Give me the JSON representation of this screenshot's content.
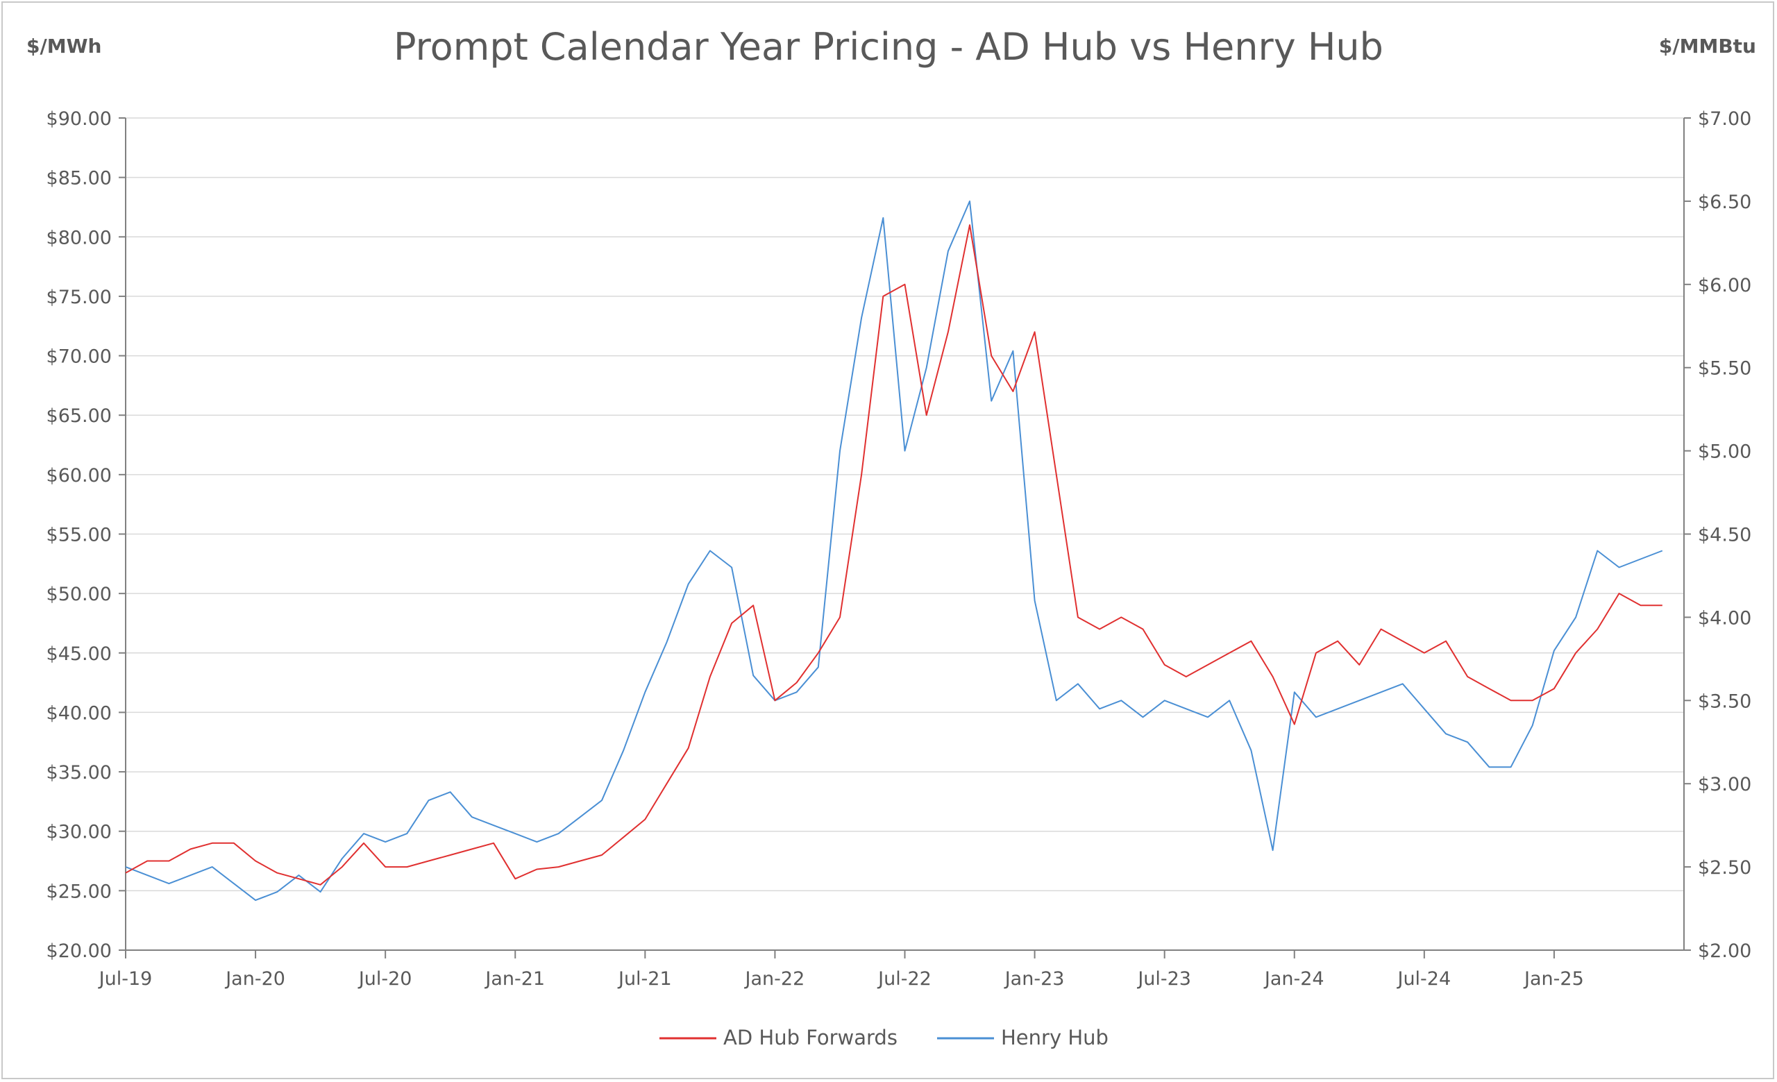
{
  "chart_data": {
    "type": "line",
    "title": "Prompt Calendar Year Pricing - AD Hub vs Henry Hub",
    "y_left_label": "$/MWh",
    "y_right_label": "$/MMBtu",
    "y_left_lim": [
      20,
      90
    ],
    "y_right_lim": [
      2,
      7
    ],
    "y_left_ticks": [
      "$20.00",
      "$25.00",
      "$30.00",
      "$35.00",
      "$40.00",
      "$45.00",
      "$50.00",
      "$55.00",
      "$60.00",
      "$65.00",
      "$70.00",
      "$75.00",
      "$80.00",
      "$85.00",
      "$90.00"
    ],
    "y_right_ticks": [
      "$2.00",
      "$2.50",
      "$3.00",
      "$3.50",
      "$4.00",
      "$4.50",
      "$5.00",
      "$5.50",
      "$6.00",
      "$6.50",
      "$7.00"
    ],
    "x_ticks": [
      "Jul-19",
      "Jan-20",
      "Jul-20",
      "Jan-21",
      "Jul-21",
      "Jan-22",
      "Jul-22",
      "Jan-23",
      "Jul-23",
      "Jan-24",
      "Jul-24",
      "Jan-25"
    ],
    "x_range": [
      "2019-07",
      "2025-07"
    ],
    "grid": "horizontal",
    "legend_position": "bottom",
    "series": [
      {
        "name": "AD Hub Forwards",
        "axis": "left",
        "color": "#e03030",
        "x": [
          "2019-07",
          "2019-08",
          "2019-09",
          "2019-10",
          "2019-11",
          "2019-12",
          "2020-01",
          "2020-02",
          "2020-03",
          "2020-04",
          "2020-05",
          "2020-06",
          "2020-07",
          "2020-08",
          "2020-09",
          "2020-10",
          "2020-11",
          "2020-12",
          "2021-01",
          "2021-02",
          "2021-03",
          "2021-04",
          "2021-05",
          "2021-06",
          "2021-07",
          "2021-08",
          "2021-09",
          "2021-10",
          "2021-11",
          "2021-12",
          "2022-01",
          "2022-02",
          "2022-03",
          "2022-04",
          "2022-05",
          "2022-06",
          "2022-07",
          "2022-08",
          "2022-09",
          "2022-10",
          "2022-11",
          "2022-12",
          "2023-01",
          "2023-02",
          "2023-03",
          "2023-04",
          "2023-05",
          "2023-06",
          "2023-07",
          "2023-08",
          "2023-09",
          "2023-10",
          "2023-11",
          "2023-12",
          "2024-01",
          "2024-02",
          "2024-03",
          "2024-04",
          "2024-05",
          "2024-06",
          "2024-07",
          "2024-08",
          "2024-09",
          "2024-10",
          "2024-11",
          "2024-12",
          "2025-01",
          "2025-02",
          "2025-03",
          "2025-04",
          "2025-05",
          "2025-06"
        ],
        "values": [
          26.5,
          27.5,
          27.5,
          28.5,
          29,
          29,
          27.5,
          26.5,
          26,
          25.5,
          27,
          29,
          27,
          27,
          27.5,
          28,
          28.5,
          29,
          26,
          26.8,
          27,
          27.5,
          28,
          29.5,
          31,
          34,
          37,
          43,
          47.5,
          49,
          41,
          42.5,
          45,
          48,
          60,
          75,
          76,
          65,
          72,
          81,
          70,
          67,
          72,
          60,
          48,
          47,
          48,
          47,
          44,
          43,
          44,
          45,
          46,
          43,
          39,
          45,
          46,
          44,
          47,
          46,
          45,
          46,
          43,
          42,
          41,
          41,
          42,
          45,
          47,
          50,
          49,
          49
        ]
      },
      {
        "name": "Henry Hub",
        "axis": "right",
        "color": "#4a8fd4",
        "x": [
          "2019-07",
          "2019-08",
          "2019-09",
          "2019-10",
          "2019-11",
          "2019-12",
          "2020-01",
          "2020-02",
          "2020-03",
          "2020-04",
          "2020-05",
          "2020-06",
          "2020-07",
          "2020-08",
          "2020-09",
          "2020-10",
          "2020-11",
          "2020-12",
          "2021-01",
          "2021-02",
          "2021-03",
          "2021-04",
          "2021-05",
          "2021-06",
          "2021-07",
          "2021-08",
          "2021-09",
          "2021-10",
          "2021-11",
          "2021-12",
          "2022-01",
          "2022-02",
          "2022-03",
          "2022-04",
          "2022-05",
          "2022-06",
          "2022-07",
          "2022-08",
          "2022-09",
          "2022-10",
          "2022-11",
          "2022-12",
          "2023-01",
          "2023-02",
          "2023-03",
          "2023-04",
          "2023-05",
          "2023-06",
          "2023-07",
          "2023-08",
          "2023-09",
          "2023-10",
          "2023-11",
          "2023-12",
          "2024-01",
          "2024-02",
          "2024-03",
          "2024-04",
          "2024-05",
          "2024-06",
          "2024-07",
          "2024-08",
          "2024-09",
          "2024-10",
          "2024-11",
          "2024-12",
          "2025-01",
          "2025-02",
          "2025-03",
          "2025-04",
          "2025-05",
          "2025-06"
        ],
        "values": [
          2.5,
          2.45,
          2.4,
          2.45,
          2.5,
          2.4,
          2.3,
          2.35,
          2.45,
          2.35,
          2.55,
          2.7,
          2.65,
          2.7,
          2.9,
          2.95,
          2.8,
          2.75,
          2.7,
          2.65,
          2.7,
          2.8,
          2.9,
          3.2,
          3.55,
          3.85,
          4.2,
          4.4,
          4.3,
          3.65,
          3.5,
          3.55,
          3.7,
          5.0,
          5.8,
          6.4,
          5.0,
          5.5,
          6.2,
          6.5,
          5.3,
          5.6,
          4.1,
          3.5,
          3.6,
          3.45,
          3.5,
          3.4,
          3.5,
          3.45,
          3.4,
          3.5,
          3.2,
          2.6,
          3.55,
          3.4,
          3.45,
          3.5,
          3.55,
          3.6,
          3.45,
          3.3,
          3.25,
          3.1,
          3.1,
          3.35,
          3.8,
          4.0,
          4.4,
          4.3,
          4.35,
          4.4
        ]
      }
    ]
  }
}
